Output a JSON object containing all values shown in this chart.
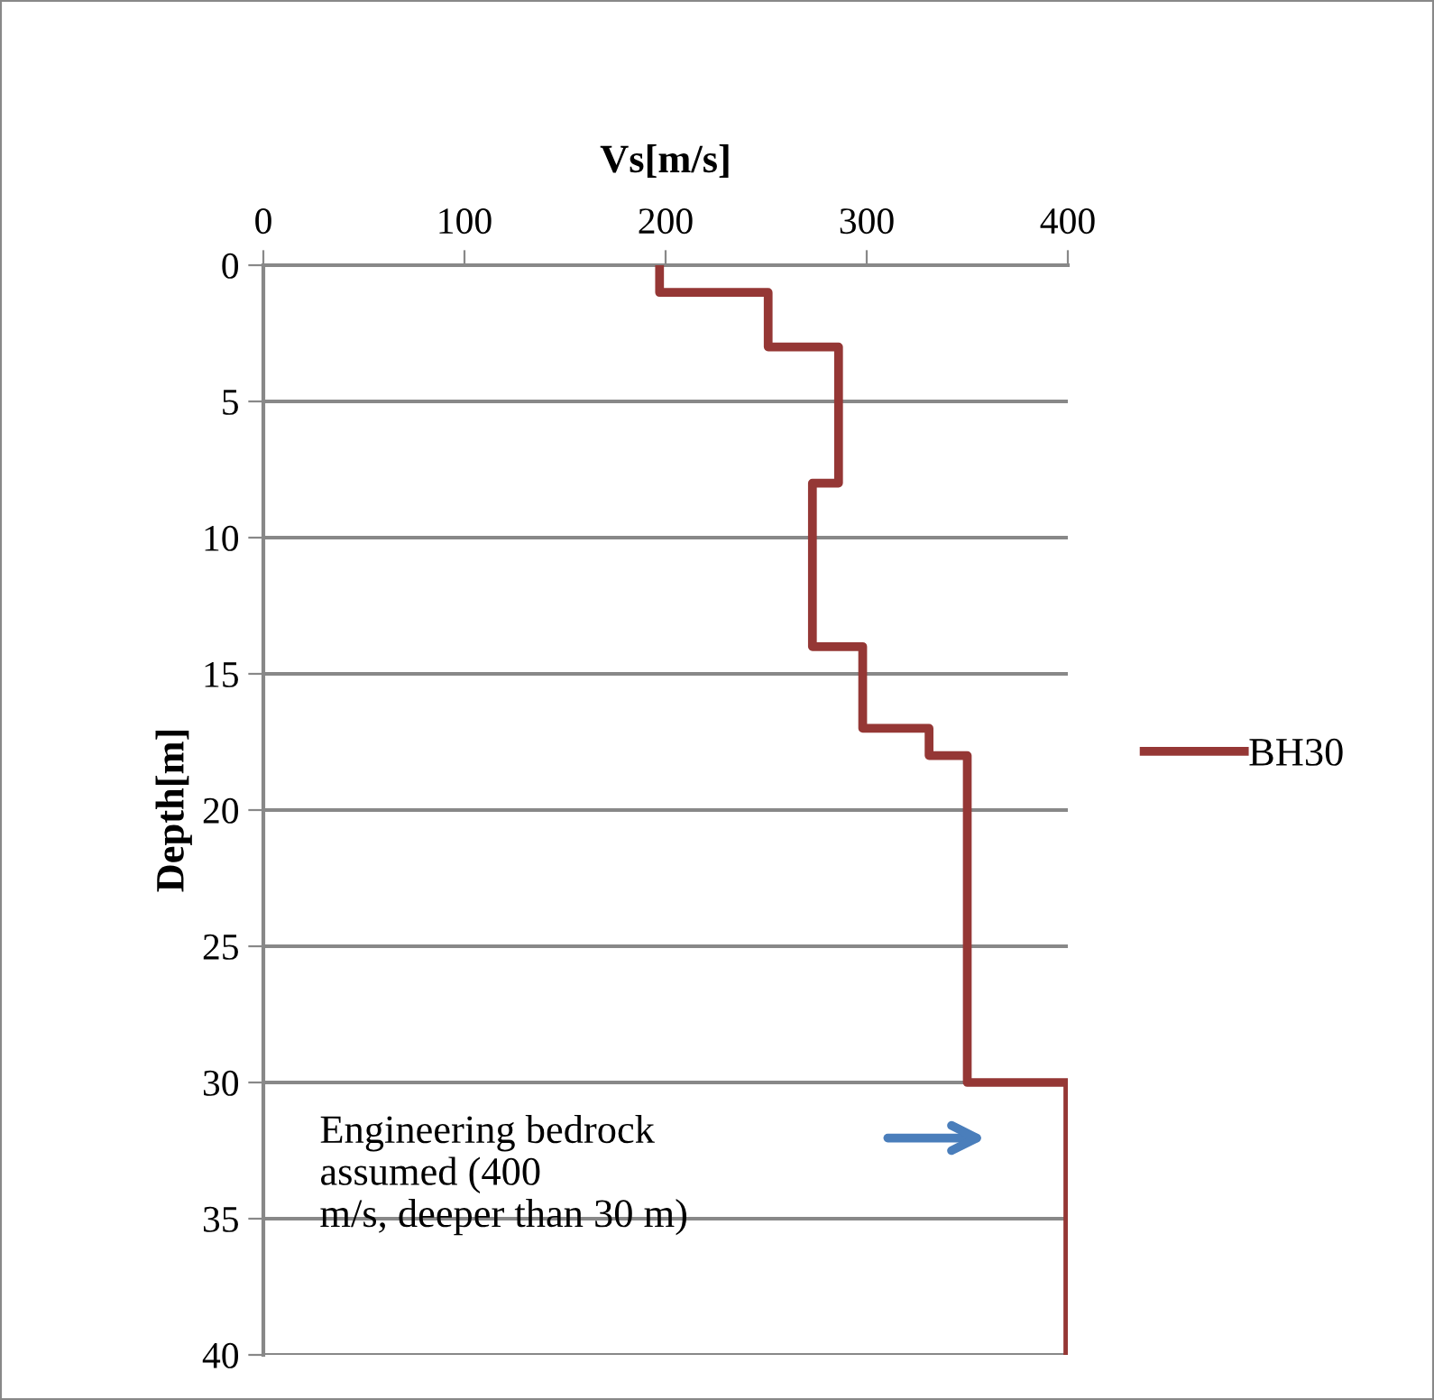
{
  "chart_data": {
    "type": "line",
    "xlabel": "Vs[m/s]",
    "ylabel": "Depth[m]",
    "series": [
      {
        "name": "BH30",
        "color": "#953735",
        "x": [
          197,
          197,
          251,
          251,
          286,
          286,
          273,
          273,
          298,
          298,
          331,
          331,
          350,
          350,
          400,
          400
        ],
        "values": [
          0,
          1,
          1,
          3,
          3,
          8,
          8,
          14,
          14,
          17,
          17,
          18,
          18,
          30,
          30,
          40
        ]
      }
    ],
    "xlim": [
      0,
      400
    ],
    "xticks": [
      0,
      100,
      200,
      300,
      400
    ],
    "ylim": [
      40,
      0
    ],
    "yticks": [
      0,
      5,
      10,
      15,
      20,
      25,
      30,
      35,
      40
    ],
    "grid": "y",
    "legend": "right",
    "marker": "none",
    "line_style": "solid",
    "annotations": [
      "Engineering bedrock\nassumed (400\nm/s, deeper than 30 m)"
    ]
  }
}
